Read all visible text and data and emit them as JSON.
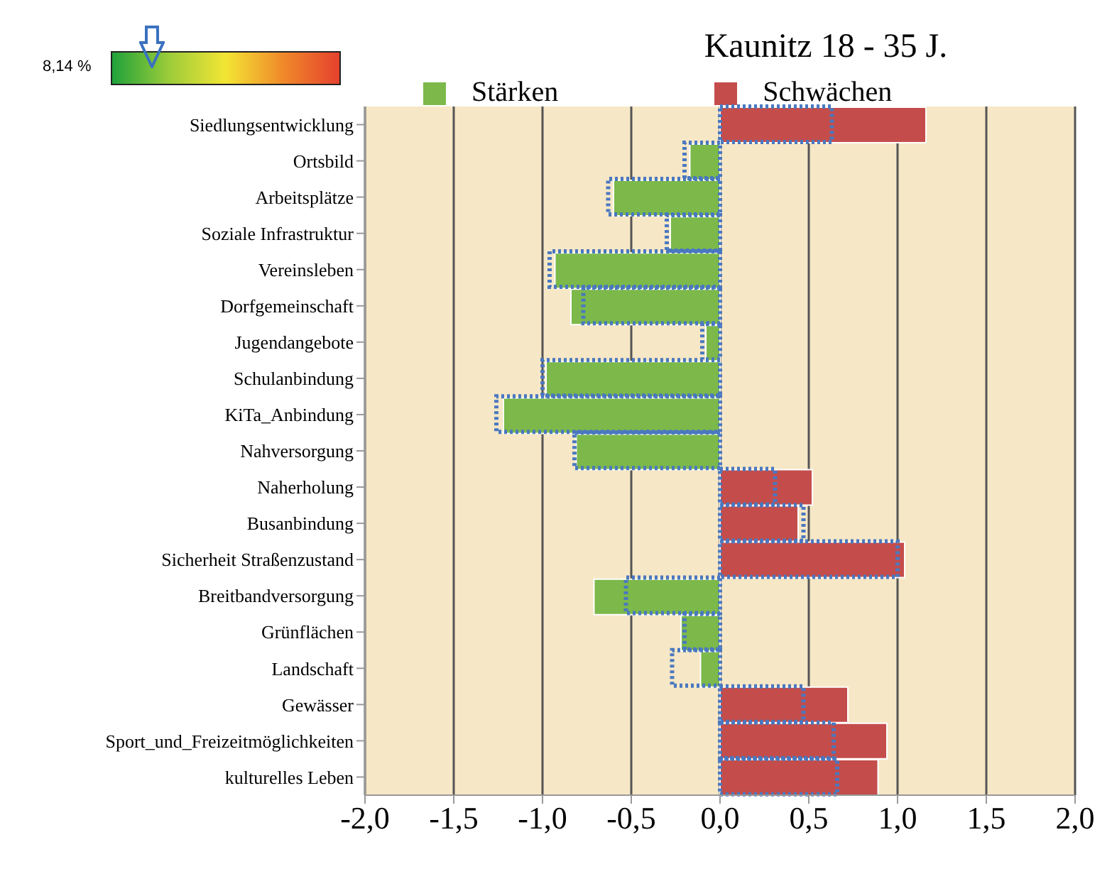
{
  "chart_data": {
    "type": "bar",
    "orientation": "horizontal",
    "title": "Kaunitz 18 - 35 J.",
    "annotations": [
      "8,14 %"
    ],
    "categories": [
      "Siedlungsentwicklung",
      "Ortsbild",
      "Arbeitsplätze",
      "Soziale Infrastruktur",
      "Vereinsleben",
      "Dorfgemeinschaft",
      "Jugendangebote",
      "Schulanbindung",
      "KiTa_Anbindung",
      "Nahversorgung",
      "Naherholung",
      "Busanbindung",
      "Sicherheit Straßenzustand",
      "Breitbandversorgung",
      "Grünflächen",
      "Landschaft",
      "Gewässer",
      "Sport_und_Freizeitmöglichkeiten",
      "kulturelles Leben"
    ],
    "series": [
      {
        "name": "Stärken",
        "color": "#7cb94a",
        "values": [
          null,
          -0.17,
          -0.6,
          -0.28,
          -0.93,
          -0.84,
          -0.08,
          -0.98,
          -1.22,
          -0.81,
          null,
          null,
          null,
          -0.71,
          -0.22,
          -0.11,
          null,
          null,
          null
        ]
      },
      {
        "name": "Schwächen",
        "color": "#c44d4b",
        "values": [
          1.16,
          null,
          null,
          null,
          null,
          null,
          null,
          null,
          null,
          null,
          0.52,
          0.44,
          1.04,
          null,
          null,
          null,
          0.72,
          0.94,
          0.89
        ]
      },
      {
        "color": "#4a78c0",
        "line_style": "dotted",
        "values": [
          0.63,
          -0.2,
          -0.63,
          -0.3,
          -0.96,
          -0.77,
          -0.1,
          -1.0,
          -1.26,
          -0.82,
          0.31,
          0.47,
          1.0,
          -0.53,
          -0.2,
          -0.27,
          0.47,
          0.64,
          0.66
        ]
      }
    ],
    "xlim": [
      -2,
      2
    ],
    "xticks": [
      {
        "value": -2,
        "label": "-2,0"
      },
      {
        "value": -1.5,
        "label": "-1,5"
      },
      {
        "value": -1,
        "label": "-1,0"
      },
      {
        "value": -0.5,
        "label": "-0,5"
      },
      {
        "value": 0,
        "label": "0,0"
      },
      {
        "value": 0.5,
        "label": "0,5"
      },
      {
        "value": 1,
        "label": "1,0"
      },
      {
        "value": 1.5,
        "label": "1,5"
      },
      {
        "value": 2,
        "label": "2,0"
      }
    ],
    "grid": "x",
    "legend": "top"
  }
}
